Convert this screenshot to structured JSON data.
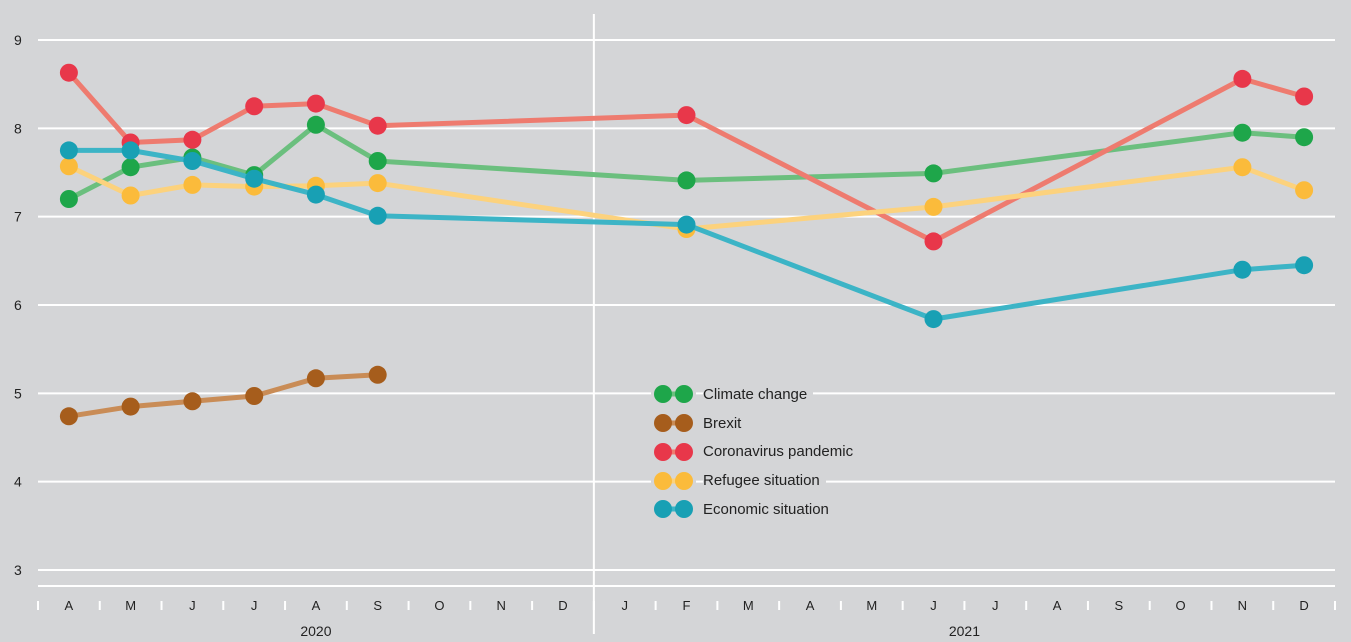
{
  "chart_data": {
    "type": "line",
    "title": "",
    "xlabel": "",
    "ylabel": "",
    "ylim": [
      3,
      9
    ],
    "yticks": [
      3,
      4,
      5,
      6,
      7,
      8,
      9
    ],
    "grid": true,
    "legend_position": "center",
    "categories": [
      "A",
      "M",
      "J",
      "J",
      "A",
      "S",
      "O",
      "N",
      "D",
      "J",
      "F",
      "M",
      "A",
      "M",
      "J",
      "J",
      "A",
      "S",
      "O",
      "N",
      "D"
    ],
    "year_groups": [
      {
        "label": "2020",
        "start": 0,
        "end": 8
      },
      {
        "label": "2021",
        "start": 9,
        "end": 20
      }
    ],
    "series": [
      {
        "name": "Climate change",
        "line_color": "#6bbf7e",
        "marker_color": "#1ea64a",
        "values": [
          7.2,
          7.56,
          7.67,
          7.47,
          8.04,
          7.63,
          null,
          null,
          null,
          null,
          7.41,
          null,
          null,
          null,
          7.49,
          null,
          null,
          null,
          null,
          7.95,
          7.9
        ]
      },
      {
        "name": "Brexit",
        "line_color": "#c98c56",
        "marker_color": "#a65d1c",
        "values": [
          4.74,
          4.85,
          4.91,
          4.97,
          5.17,
          5.21,
          null,
          null,
          null,
          null,
          null,
          null,
          null,
          null,
          null,
          null,
          null,
          null,
          null,
          null,
          null
        ]
      },
      {
        "name": "Coronavirus pandemic",
        "line_color": "#ee7b6f",
        "marker_color": "#e8374a",
        "values": [
          8.63,
          7.84,
          7.87,
          8.25,
          8.28,
          8.03,
          null,
          null,
          null,
          null,
          8.15,
          null,
          null,
          null,
          6.72,
          null,
          null,
          null,
          null,
          8.56,
          8.36
        ]
      },
      {
        "name": "Refugee situation",
        "line_color": "#fcd27d",
        "marker_color": "#fbbb3b",
        "values": [
          7.57,
          7.24,
          7.36,
          7.34,
          7.35,
          7.38,
          null,
          null,
          null,
          null,
          6.86,
          null,
          null,
          null,
          7.11,
          null,
          null,
          null,
          null,
          7.56,
          7.3
        ]
      },
      {
        "name": "Economic situation",
        "line_color": "#3cb4c6",
        "marker_color": "#18a0b4",
        "values": [
          7.75,
          7.75,
          7.63,
          7.43,
          7.25,
          7.01,
          null,
          null,
          null,
          null,
          6.91,
          null,
          null,
          null,
          5.84,
          null,
          null,
          null,
          null,
          6.4,
          6.45
        ]
      }
    ]
  }
}
